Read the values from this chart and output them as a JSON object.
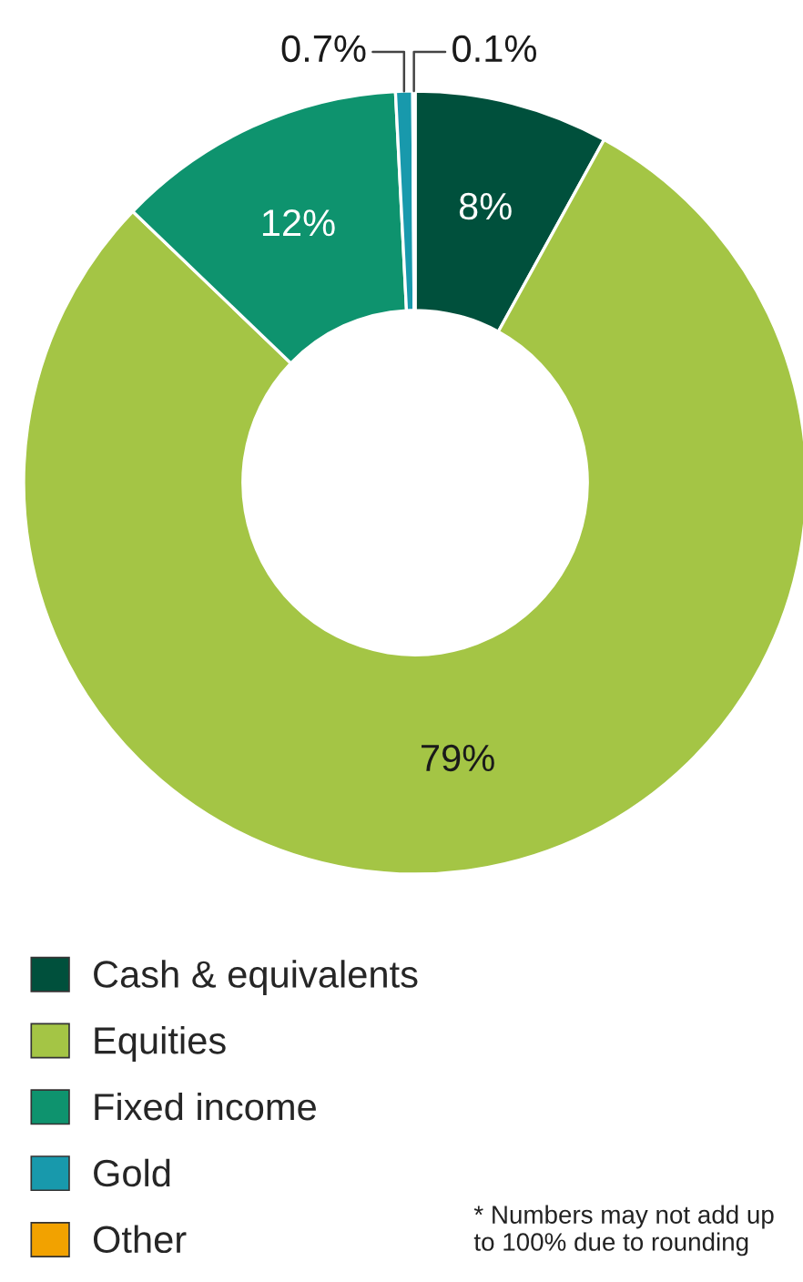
{
  "chart_data": {
    "type": "donut",
    "categories": [
      "Cash & equivalents",
      "Equities",
      "Fixed income",
      "Gold",
      "Other"
    ],
    "values": [
      8,
      79,
      12,
      0.7,
      0.1
    ],
    "colors": [
      "#00503c",
      "#a4c545",
      "#0e936e",
      "#1899ac",
      "#f2a200"
    ],
    "value_labels": [
      "8%",
      "79%",
      "12%",
      "0.7%",
      "0.1%"
    ],
    "legend": "bottom",
    "annotations": [
      "* Numbers may not add up to 100% due to rounding"
    ]
  }
}
